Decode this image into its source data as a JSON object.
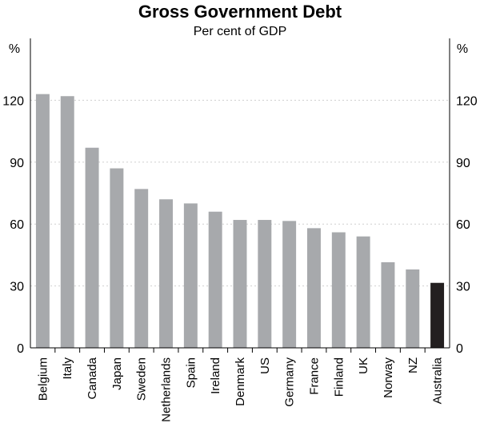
{
  "chart_data": {
    "type": "bar",
    "title": "Gross Government Debt",
    "subtitle": "Per cent of GDP",
    "ylabel_left": "%",
    "ylabel_right": "%",
    "ylim": [
      0,
      150
    ],
    "yticks": [
      0,
      30,
      60,
      90,
      120
    ],
    "grid": true,
    "categories": [
      "Belgium",
      "Italy",
      "Canada",
      "Japan",
      "Sweden",
      "Netherlands",
      "Spain",
      "Ireland",
      "Denmark",
      "US",
      "Germany",
      "France",
      "Finland",
      "UK",
      "Norway",
      "NZ",
      "Australia"
    ],
    "values": [
      123,
      122,
      97,
      87,
      77,
      72,
      70,
      66,
      62,
      62,
      61.5,
      58,
      56,
      54,
      41.5,
      38,
      31.5
    ],
    "colors": {
      "bar": "#a7a9ac",
      "highlight": "#231f20",
      "grid": "#cfcfcf",
      "axis": "#000000"
    },
    "highlight_category": "Australia"
  }
}
